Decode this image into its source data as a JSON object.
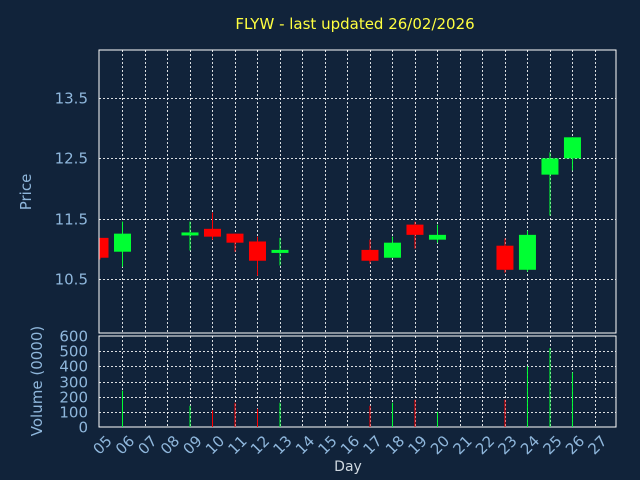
{
  "chart_data": {
    "type": "candlestick",
    "title": "FLYW - last updated 26/02/2026",
    "xlabel": "Day",
    "x_ticks": [
      "05",
      "06",
      "07",
      "08",
      "09",
      "10",
      "11",
      "12",
      "13",
      "14",
      "15",
      "16",
      "17",
      "18",
      "19",
      "20",
      "21",
      "22",
      "23",
      "24",
      "25",
      "26",
      "27"
    ],
    "price_panel": {
      "ylabel": "Price",
      "ylim": [
        9.6,
        14.3
      ],
      "y_ticks": [
        "10.5",
        "11.5",
        "12.5",
        "13.5"
      ],
      "y_tick_values": [
        10.5,
        11.5,
        12.5,
        13.5
      ]
    },
    "volume_panel": {
      "ylabel": "Volume (0000)",
      "ylim": [
        0,
        600
      ],
      "y_ticks": [
        "0",
        "100",
        "200",
        "300",
        "400",
        "500",
        "600"
      ],
      "y_tick_values": [
        0,
        100,
        200,
        300,
        400,
        500,
        600
      ]
    },
    "colors": {
      "up": "#00ff33",
      "down": "#ff0000",
      "title": "#ffff40",
      "tick": "#8fb7dc",
      "frame": "#ffffff",
      "grid": "#ffffff"
    },
    "grid": true,
    "candles": [
      {
        "day": "05",
        "open": 11.18,
        "high": 11.18,
        "low": 10.82,
        "close": 10.85,
        "volume": 0
      },
      {
        "day": "06",
        "open": 10.95,
        "high": 11.45,
        "low": 10.7,
        "close": 11.25,
        "volume": 240
      },
      {
        "day": "09",
        "open": 11.22,
        "high": 11.45,
        "low": 10.97,
        "close": 11.27,
        "volume": 140
      },
      {
        "day": "10",
        "open": 11.33,
        "high": 11.6,
        "low": 11.15,
        "close": 11.2,
        "volume": 110
      },
      {
        "day": "11",
        "open": 11.25,
        "high": 11.25,
        "low": 10.95,
        "close": 11.1,
        "volume": 160
      },
      {
        "day": "12",
        "open": 11.12,
        "high": 11.2,
        "low": 10.55,
        "close": 10.8,
        "volume": 120
      },
      {
        "day": "13",
        "open": 10.93,
        "high": 11.18,
        "low": 10.72,
        "close": 10.98,
        "volume": 160
      },
      {
        "day": "17",
        "open": 10.98,
        "high": 11.15,
        "low": 10.75,
        "close": 10.8,
        "volume": 140
      },
      {
        "day": "18",
        "open": 10.85,
        "high": 11.2,
        "low": 10.85,
        "close": 11.1,
        "volume": 160
      },
      {
        "day": "19",
        "open": 11.4,
        "high": 11.45,
        "low": 11.0,
        "close": 11.23,
        "volume": 180
      },
      {
        "day": "20",
        "open": 11.15,
        "high": 11.4,
        "low": 11.1,
        "close": 11.23,
        "volume": 100
      },
      {
        "day": "23",
        "open": 11.05,
        "high": 11.17,
        "low": 10.6,
        "close": 10.65,
        "volume": 180
      },
      {
        "day": "24",
        "open": 10.65,
        "high": 11.3,
        "low": 10.62,
        "close": 11.23,
        "volume": 400
      },
      {
        "day": "25",
        "open": 12.23,
        "high": 12.6,
        "low": 11.55,
        "close": 12.5,
        "volume": 520
      },
      {
        "day": "26",
        "open": 12.5,
        "high": 12.85,
        "low": 12.3,
        "close": 12.85,
        "volume": 360
      }
    ]
  }
}
